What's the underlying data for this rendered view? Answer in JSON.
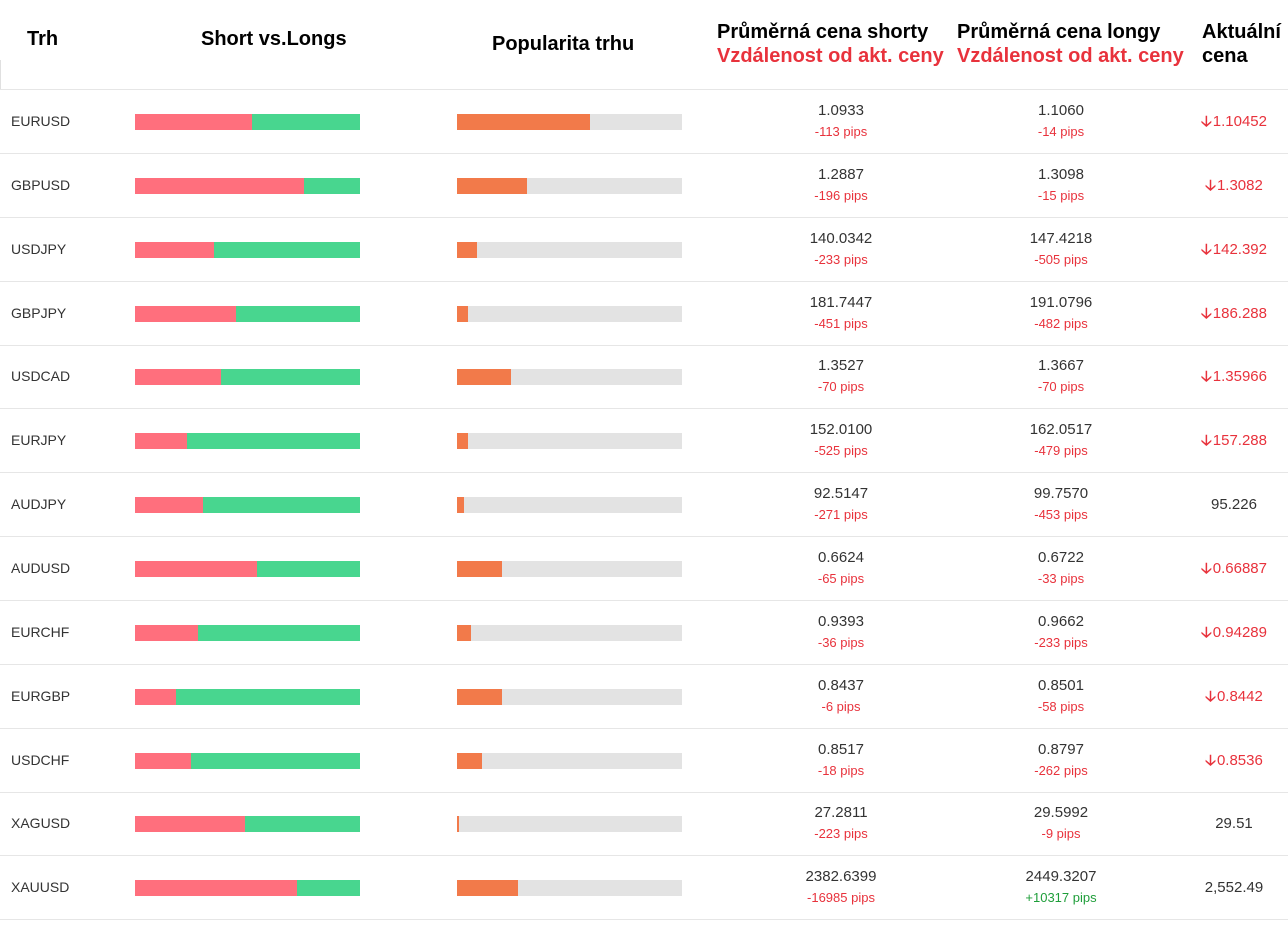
{
  "headers": {
    "market": "Trh",
    "short_long": "Short vs.Longs",
    "popularity": "Popularita trhu",
    "avg_short": "Průměrná cena shorty",
    "avg_long": "Průměrná cena longy",
    "distance": "Vzdálenost od akt. ceny",
    "current_line1": "Aktuální",
    "current_line2": "cena"
  },
  "colors": {
    "short": "#ff6f7d",
    "long": "#48d68f",
    "popularity": "#f27a4a",
    "track": "#e3e3e3",
    "negative": "#e8323c",
    "positive": "#1f9e3a"
  },
  "rows": [
    {
      "market": "EURUSD",
      "short_pct": 52,
      "popularity_pct": 59,
      "avg_short": "1.0933",
      "short_pips": "-113 pips",
      "avg_long": "1.1060",
      "long_pips": "-14 pips",
      "current": "1.10452",
      "trend": "down"
    },
    {
      "market": "GBPUSD",
      "short_pct": 75,
      "popularity_pct": 31,
      "avg_short": "1.2887",
      "short_pips": "-196 pips",
      "avg_long": "1.3098",
      "long_pips": "-15 pips",
      "current": "1.3082",
      "trend": "down"
    },
    {
      "market": "USDJPY",
      "short_pct": 35,
      "popularity_pct": 9,
      "avg_short": "140.0342",
      "short_pips": "-233 pips",
      "avg_long": "147.4218",
      "long_pips": "-505 pips",
      "current": "142.392",
      "trend": "down"
    },
    {
      "market": "GBPJPY",
      "short_pct": 45,
      "popularity_pct": 5,
      "avg_short": "181.7447",
      "short_pips": "-451 pips",
      "avg_long": "191.0796",
      "long_pips": "-482 pips",
      "current": "186.288",
      "trend": "down"
    },
    {
      "market": "USDCAD",
      "short_pct": 38,
      "popularity_pct": 24,
      "avg_short": "1.3527",
      "short_pips": "-70 pips",
      "avg_long": "1.3667",
      "long_pips": "-70 pips",
      "current": "1.35966",
      "trend": "down"
    },
    {
      "market": "EURJPY",
      "short_pct": 23,
      "popularity_pct": 5,
      "avg_short": "152.0100",
      "short_pips": "-525 pips",
      "avg_long": "162.0517",
      "long_pips": "-479 pips",
      "current": "157.288",
      "trend": "down"
    },
    {
      "market": "AUDJPY",
      "short_pct": 30,
      "popularity_pct": 3,
      "avg_short": "92.5147",
      "short_pips": "-271 pips",
      "avg_long": "99.7570",
      "long_pips": "-453 pips",
      "current": "95.226",
      "trend": "none"
    },
    {
      "market": "AUDUSD",
      "short_pct": 54,
      "popularity_pct": 20,
      "avg_short": "0.6624",
      "short_pips": "-65 pips",
      "avg_long": "0.6722",
      "long_pips": "-33 pips",
      "current": "0.66887",
      "trend": "down"
    },
    {
      "market": "EURCHF",
      "short_pct": 28,
      "popularity_pct": 6,
      "avg_short": "0.9393",
      "short_pips": "-36 pips",
      "avg_long": "0.9662",
      "long_pips": "-233 pips",
      "current": "0.94289",
      "trend": "down"
    },
    {
      "market": "EURGBP",
      "short_pct": 18,
      "popularity_pct": 20,
      "avg_short": "0.8437",
      "short_pips": "-6 pips",
      "avg_long": "0.8501",
      "long_pips": "-58 pips",
      "current": "0.8442",
      "trend": "down"
    },
    {
      "market": "USDCHF",
      "short_pct": 25,
      "popularity_pct": 11,
      "avg_short": "0.8517",
      "short_pips": "-18 pips",
      "avg_long": "0.8797",
      "long_pips": "-262 pips",
      "current": "0.8536",
      "trend": "down"
    },
    {
      "market": "XAGUSD",
      "short_pct": 49,
      "popularity_pct": 1,
      "avg_short": "27.2811",
      "short_pips": "-223 pips",
      "avg_long": "29.5992",
      "long_pips": "-9 pips",
      "current": "29.51",
      "trend": "none"
    },
    {
      "market": "XAUUSD",
      "short_pct": 72,
      "popularity_pct": 27,
      "avg_short": "2382.6399",
      "short_pips": "-16985 pips",
      "avg_long": "2449.3207",
      "long_pips": "+10317 pips",
      "current": "2,552.49",
      "trend": "none"
    }
  ]
}
